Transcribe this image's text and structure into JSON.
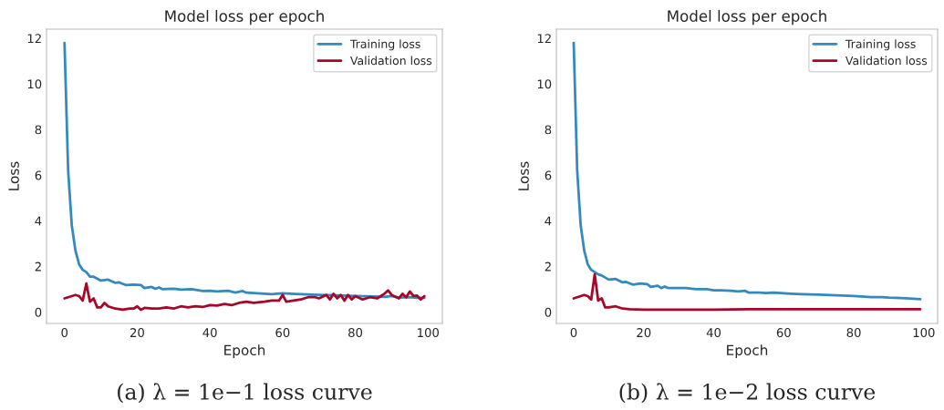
{
  "chart_data": [
    {
      "type": "line",
      "title": "Model loss per epoch",
      "xlabel": "Epoch",
      "ylabel": "Loss",
      "xlim": [
        -4.95,
        103.95
      ],
      "ylim": [
        -0.5,
        12.4
      ],
      "xticks": [
        0,
        20,
        40,
        60,
        80,
        100
      ],
      "yticks": [
        0,
        2,
        4,
        6,
        8,
        10,
        12
      ],
      "grid": false,
      "legend": "top right",
      "annotations": [
        "(a) λ = 1e−1 loss curve"
      ],
      "series": [
        {
          "name": "Training loss",
          "color": "#348abd",
          "x": [
            0,
            1,
            2,
            3,
            4,
            5,
            6,
            7,
            8,
            10,
            12,
            14,
            15,
            17,
            19,
            21,
            22,
            24,
            25,
            26,
            27,
            30,
            32,
            35,
            38,
            40,
            42,
            45,
            47,
            49,
            50,
            53,
            55,
            57,
            60,
            62,
            65,
            70,
            75,
            80,
            85,
            88,
            90,
            92,
            95,
            97,
            99
          ],
          "values": [
            11.8,
            6.2,
            3.8,
            2.7,
            2.1,
            1.85,
            1.75,
            1.55,
            1.55,
            1.38,
            1.42,
            1.28,
            1.3,
            1.18,
            1.2,
            1.18,
            1.05,
            1.1,
            1.02,
            1.08,
            1.0,
            1.02,
            0.98,
            1.0,
            0.92,
            0.93,
            0.9,
            0.93,
            0.85,
            0.92,
            0.85,
            0.82,
            0.8,
            0.78,
            0.82,
            0.8,
            0.78,
            0.75,
            0.73,
            0.7,
            0.68,
            0.66,
            0.7,
            0.63,
            0.65,
            0.62,
            0.62
          ]
        },
        {
          "name": "Validation loss",
          "color": "#a60628",
          "x": [
            0,
            2,
            3,
            4,
            5,
            6,
            7,
            8,
            9,
            10,
            11,
            12,
            14,
            16,
            18,
            19,
            20,
            21,
            22,
            24,
            26,
            28,
            30,
            32,
            34,
            36,
            38,
            40,
            42,
            44,
            46,
            48,
            50,
            52,
            55,
            57,
            59,
            60,
            61,
            63,
            65,
            67,
            69,
            70,
            72,
            73,
            74,
            75,
            76,
            77,
            78,
            79,
            80,
            82,
            84,
            86,
            88,
            89,
            90,
            92,
            93,
            94,
            95,
            96,
            97,
            98,
            99
          ],
          "values": [
            0.6,
            0.7,
            0.75,
            0.7,
            0.5,
            1.25,
            0.45,
            0.6,
            0.2,
            0.2,
            0.4,
            0.25,
            0.15,
            0.1,
            0.15,
            0.15,
            0.25,
            0.1,
            0.18,
            0.15,
            0.15,
            0.2,
            0.15,
            0.25,
            0.2,
            0.25,
            0.22,
            0.3,
            0.28,
            0.35,
            0.3,
            0.4,
            0.45,
            0.4,
            0.45,
            0.5,
            0.5,
            0.75,
            0.45,
            0.5,
            0.55,
            0.65,
            0.65,
            0.6,
            0.75,
            0.55,
            0.8,
            0.6,
            0.75,
            0.5,
            0.75,
            0.55,
            0.7,
            0.55,
            0.65,
            0.6,
            0.8,
            0.95,
            0.75,
            0.6,
            0.8,
            0.65,
            0.9,
            0.7,
            0.72,
            0.55,
            0.7
          ]
        }
      ]
    },
    {
      "type": "line",
      "title": "Model loss per epoch",
      "xlabel": "Epoch",
      "ylabel": "Loss",
      "xlim": [
        -4.95,
        103.95
      ],
      "ylim": [
        -0.5,
        12.4
      ],
      "xticks": [
        0,
        20,
        40,
        60,
        80,
        100
      ],
      "yticks": [
        0,
        2,
        4,
        6,
        8,
        10,
        12
      ],
      "grid": false,
      "legend": "top right",
      "annotations": [
        "(b) λ = 1e−2 loss curve"
      ],
      "series": [
        {
          "name": "Training loss",
          "color": "#348abd",
          "x": [
            0,
            1,
            2,
            3,
            4,
            5,
            6,
            7,
            8,
            10,
            12,
            14,
            15,
            17,
            19,
            21,
            22,
            24,
            25,
            26,
            27,
            30,
            32,
            35,
            38,
            40,
            42,
            45,
            47,
            49,
            50,
            53,
            55,
            57,
            60,
            62,
            65,
            70,
            75,
            80,
            85,
            88,
            90,
            92,
            95,
            97,
            99
          ],
          "values": [
            11.8,
            6.2,
            3.8,
            2.7,
            2.1,
            1.85,
            1.75,
            1.65,
            1.6,
            1.42,
            1.45,
            1.3,
            1.32,
            1.2,
            1.25,
            1.22,
            1.1,
            1.15,
            1.05,
            1.12,
            1.05,
            1.05,
            1.05,
            1.0,
            1.0,
            0.95,
            0.95,
            0.93,
            0.9,
            0.93,
            0.85,
            0.85,
            0.83,
            0.85,
            0.82,
            0.8,
            0.78,
            0.76,
            0.73,
            0.7,
            0.65,
            0.65,
            0.63,
            0.62,
            0.6,
            0.58,
            0.56
          ]
        },
        {
          "name": "Validation loss",
          "color": "#a60628",
          "x": [
            0,
            2,
            3,
            4,
            5,
            6,
            7,
            8,
            9,
            10,
            12,
            14,
            16,
            20,
            30,
            40,
            50,
            60,
            70,
            80,
            90,
            99
          ],
          "values": [
            0.6,
            0.7,
            0.75,
            0.7,
            0.55,
            1.65,
            0.5,
            0.6,
            0.2,
            0.2,
            0.25,
            0.15,
            0.12,
            0.1,
            0.1,
            0.1,
            0.12,
            0.12,
            0.12,
            0.12,
            0.12,
            0.12
          ]
        }
      ]
    }
  ]
}
